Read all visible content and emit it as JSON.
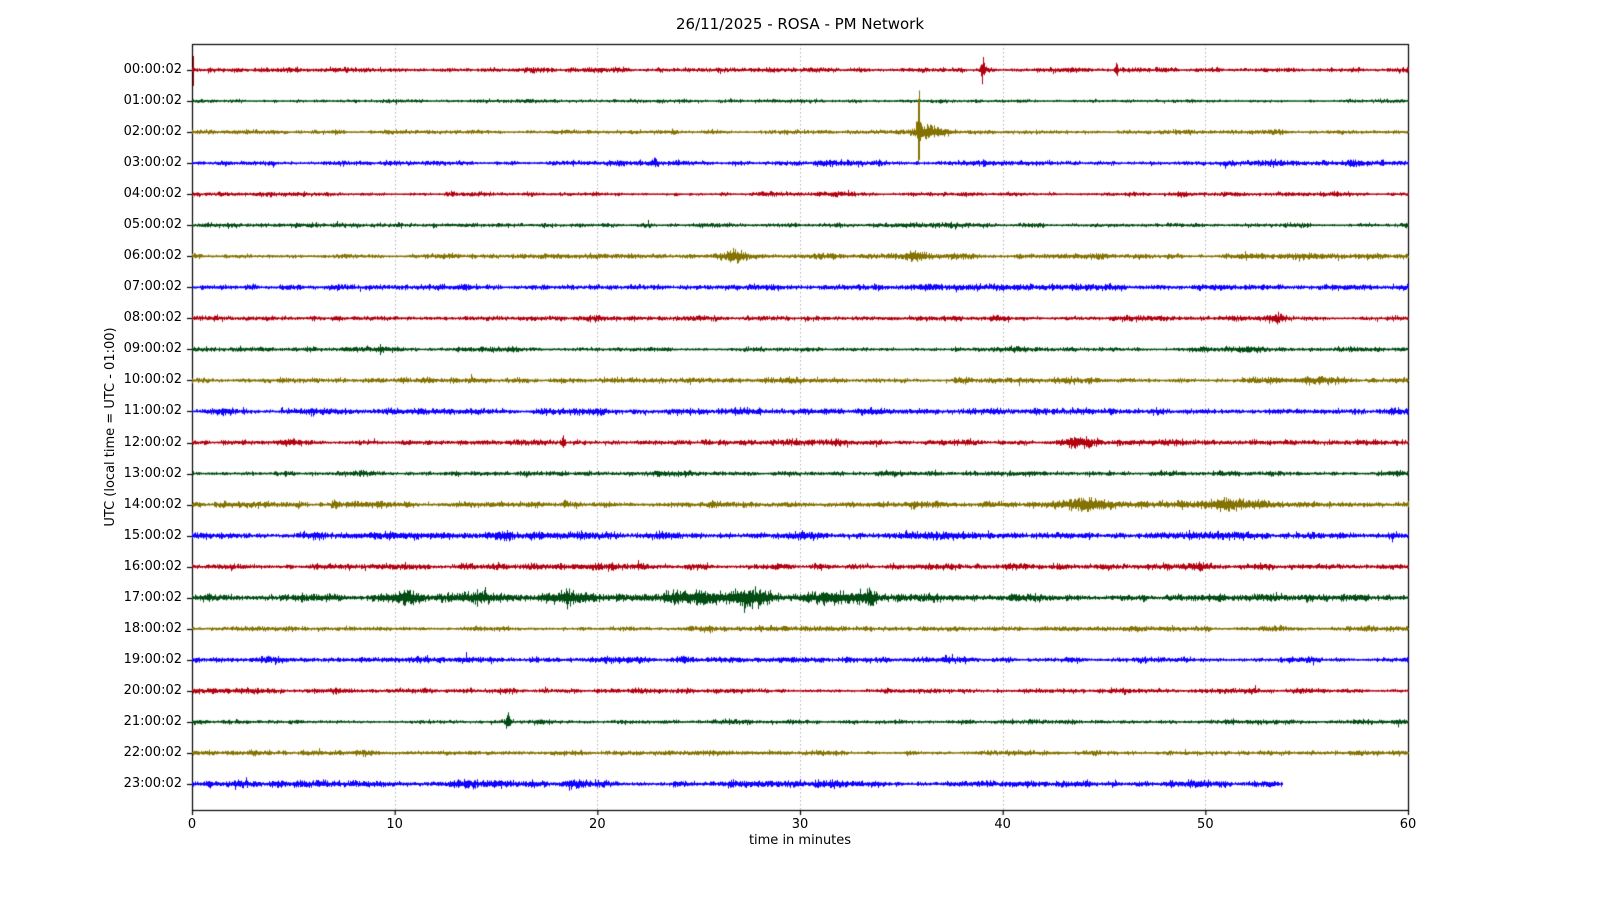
{
  "figure": {
    "background": "#ffffff",
    "title": "26/11/2025 - ROSA - PM Network"
  },
  "chart_data": {
    "type": "helicorder",
    "title": "26/11/2025 - ROSA - PM Network",
    "xlabel": "time in minutes",
    "ylabel": "UTC (local time = UTC - 01:00)",
    "x_min": 0,
    "x_max": 60,
    "xticks": [
      0,
      10,
      20,
      30,
      40,
      50,
      60
    ],
    "grid_x_minutes": [
      10,
      20,
      30,
      40,
      50
    ],
    "grid_style": "dotted",
    "grid_color": "#b3b3b3",
    "axis_color": "#000000",
    "row_interval_minutes": 60,
    "trace_color_cycle": [
      "#B2000F",
      "#004C12",
      "#847200",
      "#0E01FF"
    ],
    "rows": [
      {
        "label": "00:00:02",
        "color": "#B2000F",
        "noise_amp": 2.2,
        "end_min": 60,
        "events": [
          {
            "t": 0.05,
            "amp": 20,
            "w": 0.02
          },
          {
            "t": 39.0,
            "amp": 11,
            "w": 0.07
          },
          {
            "t": 45.6,
            "amp": 6,
            "w": 0.06
          }
        ]
      },
      {
        "label": "01:00:02",
        "color": "#004C12",
        "noise_amp": 1.6,
        "end_min": 60,
        "events": []
      },
      {
        "label": "02:00:02",
        "color": "#847200",
        "noise_amp": 2.0,
        "end_min": 60,
        "events": [
          {
            "t": 35.85,
            "amp": 46,
            "w": 0.05
          },
          {
            "t": 36.15,
            "amp": 7,
            "w": 0.35
          },
          {
            "t": 36.9,
            "amp": 3,
            "w": 0.5
          }
        ]
      },
      {
        "label": "03:00:02",
        "color": "#0E01FF",
        "noise_amp": 2.4,
        "end_min": 60,
        "events": [
          {
            "t": 22.8,
            "amp": 4,
            "w": 0.15
          }
        ]
      },
      {
        "label": "04:00:02",
        "color": "#B2000F",
        "noise_amp": 2.0,
        "end_min": 60,
        "events": []
      },
      {
        "label": "05:00:02",
        "color": "#004C12",
        "noise_amp": 2.0,
        "end_min": 60,
        "events": []
      },
      {
        "label": "06:00:02",
        "color": "#847200",
        "noise_amp": 2.4,
        "end_min": 60,
        "events": [
          {
            "t": 26.8,
            "amp": 4,
            "w": 0.5
          },
          {
            "t": 35.7,
            "amp": 3,
            "w": 0.5
          },
          {
            "t": 37.6,
            "amp": 2.5,
            "w": 0.4
          }
        ]
      },
      {
        "label": "07:00:02",
        "color": "#0E01FF",
        "noise_amp": 2.6,
        "end_min": 60,
        "events": []
      },
      {
        "label": "08:00:02",
        "color": "#B2000F",
        "noise_amp": 2.4,
        "end_min": 60,
        "events": [
          {
            "t": 53.5,
            "amp": 4,
            "w": 0.3
          }
        ]
      },
      {
        "label": "09:00:02",
        "color": "#004C12",
        "noise_amp": 2.2,
        "end_min": 60,
        "events": [
          {
            "t": 9.3,
            "amp": 3.5,
            "w": 0.08
          }
        ]
      },
      {
        "label": "10:00:02",
        "color": "#847200",
        "noise_amp": 2.6,
        "end_min": 60,
        "events": [
          {
            "t": 55.3,
            "amp": 3,
            "w": 0.7
          }
        ]
      },
      {
        "label": "11:00:02",
        "color": "#0E01FF",
        "noise_amp": 2.8,
        "end_min": 60,
        "events": []
      },
      {
        "label": "12:00:02",
        "color": "#B2000F",
        "noise_amp": 2.6,
        "end_min": 60,
        "events": [
          {
            "t": 18.3,
            "amp": 7,
            "w": 0.06
          },
          {
            "t": 43.8,
            "amp": 3.5,
            "w": 0.6
          }
        ]
      },
      {
        "label": "13:00:02",
        "color": "#004C12",
        "noise_amp": 2.2,
        "end_min": 60,
        "events": []
      },
      {
        "label": "14:00:02",
        "color": "#847200",
        "noise_amp": 2.8,
        "end_min": 60,
        "events": [
          {
            "t": 44.0,
            "amp": 5,
            "w": 0.9
          },
          {
            "t": 51.2,
            "amp": 6,
            "w": 1.1
          }
        ]
      },
      {
        "label": "15:00:02",
        "color": "#0E01FF",
        "noise_amp": 3.4,
        "end_min": 60,
        "events": [
          {
            "t": 15.6,
            "amp": 4,
            "w": 0.15
          }
        ]
      },
      {
        "label": "16:00:02",
        "color": "#B2000F",
        "noise_amp": 2.8,
        "end_min": 60,
        "events": []
      },
      {
        "label": "17:00:02",
        "color": "#004C12",
        "noise_amp": 3.2,
        "end_min": 60,
        "events": [
          {
            "t": 10.6,
            "amp": 7,
            "w": 0.5
          },
          {
            "t": 14.0,
            "amp": 4,
            "w": 1.2
          },
          {
            "t": 18.5,
            "amp": 4.5,
            "w": 1.0
          },
          {
            "t": 25.0,
            "amp": 4.5,
            "w": 2.0
          },
          {
            "t": 27.5,
            "amp": 5,
            "w": 0.8
          },
          {
            "t": 31.8,
            "amp": 5.5,
            "w": 0.9
          },
          {
            "t": 33.4,
            "amp": 7,
            "w": 0.25
          }
        ]
      },
      {
        "label": "18:00:02",
        "color": "#847200",
        "noise_amp": 2.4,
        "end_min": 60,
        "events": []
      },
      {
        "label": "19:00:02",
        "color": "#0E01FF",
        "noise_amp": 2.8,
        "end_min": 60,
        "events": []
      },
      {
        "label": "20:00:02",
        "color": "#B2000F",
        "noise_amp": 2.4,
        "end_min": 60,
        "events": []
      },
      {
        "label": "21:00:02",
        "color": "#004C12",
        "noise_amp": 2.0,
        "end_min": 60,
        "events": [
          {
            "t": 15.6,
            "amp": 9,
            "w": 0.09
          }
        ]
      },
      {
        "label": "22:00:02",
        "color": "#847200",
        "noise_amp": 2.2,
        "end_min": 60,
        "events": []
      },
      {
        "label": "23:00:02",
        "color": "#0E01FF",
        "noise_amp": 3.0,
        "end_min": 53.8,
        "events": []
      }
    ]
  }
}
